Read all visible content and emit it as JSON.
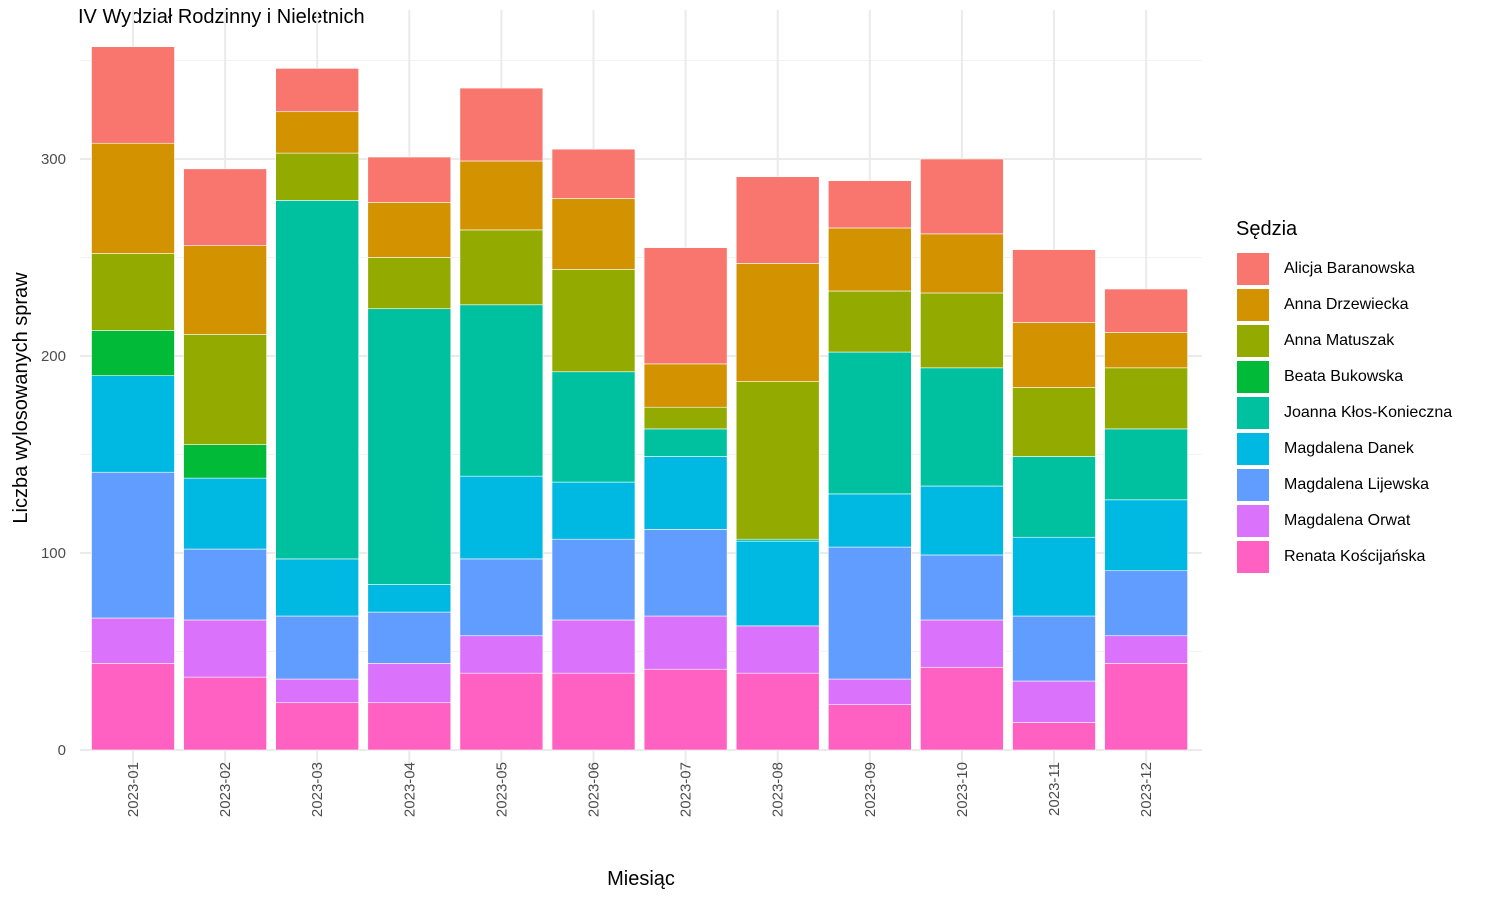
{
  "chart_data": {
    "type": "bar",
    "stacked": true,
    "title": "IV Wydział Rodzinny i Nieletnich",
    "xlabel": "Miesiąc",
    "ylabel": "Liczba wylosowanych spraw",
    "ylim": [
      0,
      360
    ],
    "yticks": [
      0,
      100,
      200,
      300
    ],
    "grid": true,
    "legend_title": "Sędzia",
    "legend_position": "right",
    "categories": [
      "2023-01",
      "2023-02",
      "2023-03",
      "2023-04",
      "2023-05",
      "2023-06",
      "2023-07",
      "2023-08",
      "2023-09",
      "2023-10",
      "2023-11",
      "2023-12"
    ],
    "series": [
      {
        "name": "Renata Kościjańska",
        "color": "#FF61C3",
        "values": [
          44,
          37,
          24,
          24,
          39,
          39,
          41,
          39,
          23,
          42,
          14,
          44
        ]
      },
      {
        "name": "Magdalena Orwat",
        "color": "#DB72FB",
        "values": [
          23,
          29,
          12,
          20,
          19,
          27,
          27,
          24,
          13,
          24,
          21,
          14
        ]
      },
      {
        "name": "Magdalena Lijewska",
        "color": "#619CFF",
        "values": [
          74,
          36,
          32,
          26,
          39,
          41,
          44,
          0,
          67,
          33,
          33,
          33
        ]
      },
      {
        "name": "Magdalena Danek",
        "color": "#00B9E3",
        "values": [
          49,
          36,
          29,
          14,
          42,
          29,
          37,
          43,
          27,
          35,
          40,
          36
        ]
      },
      {
        "name": "Joanna Kłos-Konieczna",
        "color": "#00C19F",
        "values": [
          0,
          0,
          182,
          140,
          87,
          56,
          14,
          1,
          72,
          60,
          41,
          36
        ]
      },
      {
        "name": "Beata Bukowska",
        "color": "#00BA38",
        "values": [
          23,
          17,
          0,
          0,
          0,
          0,
          0,
          0,
          0,
          0,
          0,
          0
        ]
      },
      {
        "name": "Anna Matuszak",
        "color": "#93AA00",
        "values": [
          39,
          56,
          24,
          26,
          38,
          52,
          11,
          80,
          31,
          38,
          35,
          31
        ]
      },
      {
        "name": "Anna Drzewiecka",
        "color": "#D39200",
        "values": [
          56,
          45,
          21,
          28,
          35,
          36,
          22,
          60,
          32,
          30,
          33,
          18
        ]
      },
      {
        "name": "Alicja Baranowska",
        "color": "#F8766D",
        "values": [
          49,
          39,
          22,
          23,
          37,
          25,
          59,
          44,
          24,
          38,
          37,
          22
        ]
      }
    ],
    "legend_order": [
      "Alicja Baranowska",
      "Anna Drzewiecka",
      "Anna Matuszak",
      "Beata Bukowska",
      "Joanna Kłos-Konieczna",
      "Magdalena Danek",
      "Magdalena Lijewska",
      "Magdalena Orwat",
      "Renata Kościjańska"
    ]
  }
}
